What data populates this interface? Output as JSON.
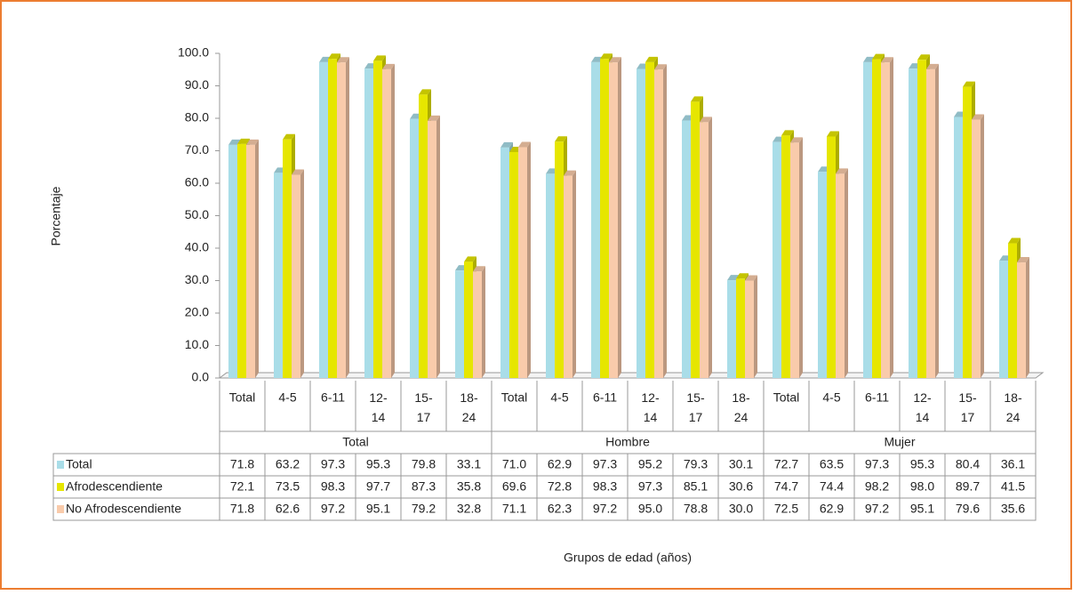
{
  "chart_data": {
    "type": "bar",
    "y_label": "Porcentaje",
    "x_label": "Grupos de edad (años)",
    "groups": [
      "Total",
      "Hombre",
      "Mujer"
    ],
    "categories": [
      "Total",
      "4-5",
      "6-11",
      "12-14",
      "15-17",
      "18-24",
      "Total",
      "4-5",
      "6-11",
      "12-14",
      "15-17",
      "18-24",
      "Total",
      "4-5",
      "6-11",
      "12-14",
      "15-17",
      "18-24"
    ],
    "series": [
      {
        "name": "Total",
        "color": "#a9dde8",
        "values": [
          71.8,
          63.2,
          97.3,
          95.3,
          79.8,
          33.1,
          71.0,
          62.9,
          97.3,
          95.2,
          79.3,
          30.1,
          72.7,
          63.5,
          97.3,
          95.3,
          80.4,
          36.1
        ],
        "value_labels": [
          "71.8",
          "63.2",
          "97.3",
          "95.3",
          "79.8",
          "33.1",
          "71.0",
          "62.9",
          "97.3",
          "95.2",
          "79.3",
          "30.1",
          "72.7",
          "63.5",
          "97.3",
          "95.3",
          "80.4",
          "36.1"
        ]
      },
      {
        "name": "Afrodescendiente",
        "color": "#e6e600",
        "values": [
          72.1,
          73.5,
          98.3,
          97.7,
          87.3,
          35.8,
          69.6,
          72.8,
          98.3,
          97.3,
          85.1,
          30.6,
          74.7,
          74.4,
          98.2,
          98.0,
          89.7,
          41.5
        ],
        "value_labels": [
          "72.1",
          "73.5",
          "98.3",
          "97.7",
          "87.3",
          "35.8",
          "69.6",
          "72.8",
          "98.3",
          "97.3",
          "85.1",
          "30.6",
          "74.7",
          "74.4",
          "98.2",
          "98.0",
          "89.7",
          "41.5"
        ]
      },
      {
        "name": "No Afrodescendiente",
        "color": "#f9cbab",
        "values": [
          71.8,
          62.6,
          97.2,
          95.1,
          79.2,
          32.8,
          71.1,
          62.3,
          97.2,
          95.0,
          78.8,
          30.0,
          72.5,
          62.9,
          97.2,
          95.1,
          79.6,
          35.6
        ],
        "value_labels": [
          "71.8",
          "62.6",
          "97.2",
          "95.1",
          "79.2",
          "32.8",
          "71.1",
          "62.3",
          "97.2",
          "95.0",
          "78.8",
          "30.0",
          "72.5",
          "62.9",
          "97.2",
          "95.1",
          "79.6",
          "35.6"
        ]
      }
    ],
    "ylim": [
      0,
      100
    ],
    "yticks": [
      {
        "value": 0,
        "label": "0.0"
      },
      {
        "value": 10,
        "label": "10.0"
      },
      {
        "value": 20,
        "label": "20.0"
      },
      {
        "value": 30,
        "label": "30.0"
      },
      {
        "value": 40,
        "label": "40.0"
      },
      {
        "value": 50,
        "label": "50.0"
      },
      {
        "value": 60,
        "label": "60.0"
      },
      {
        "value": 70,
        "label": "70.0"
      },
      {
        "value": 80,
        "label": "80.0"
      },
      {
        "value": 90,
        "label": "90.0"
      },
      {
        "value": 100,
        "label": "100.0"
      }
    ]
  }
}
